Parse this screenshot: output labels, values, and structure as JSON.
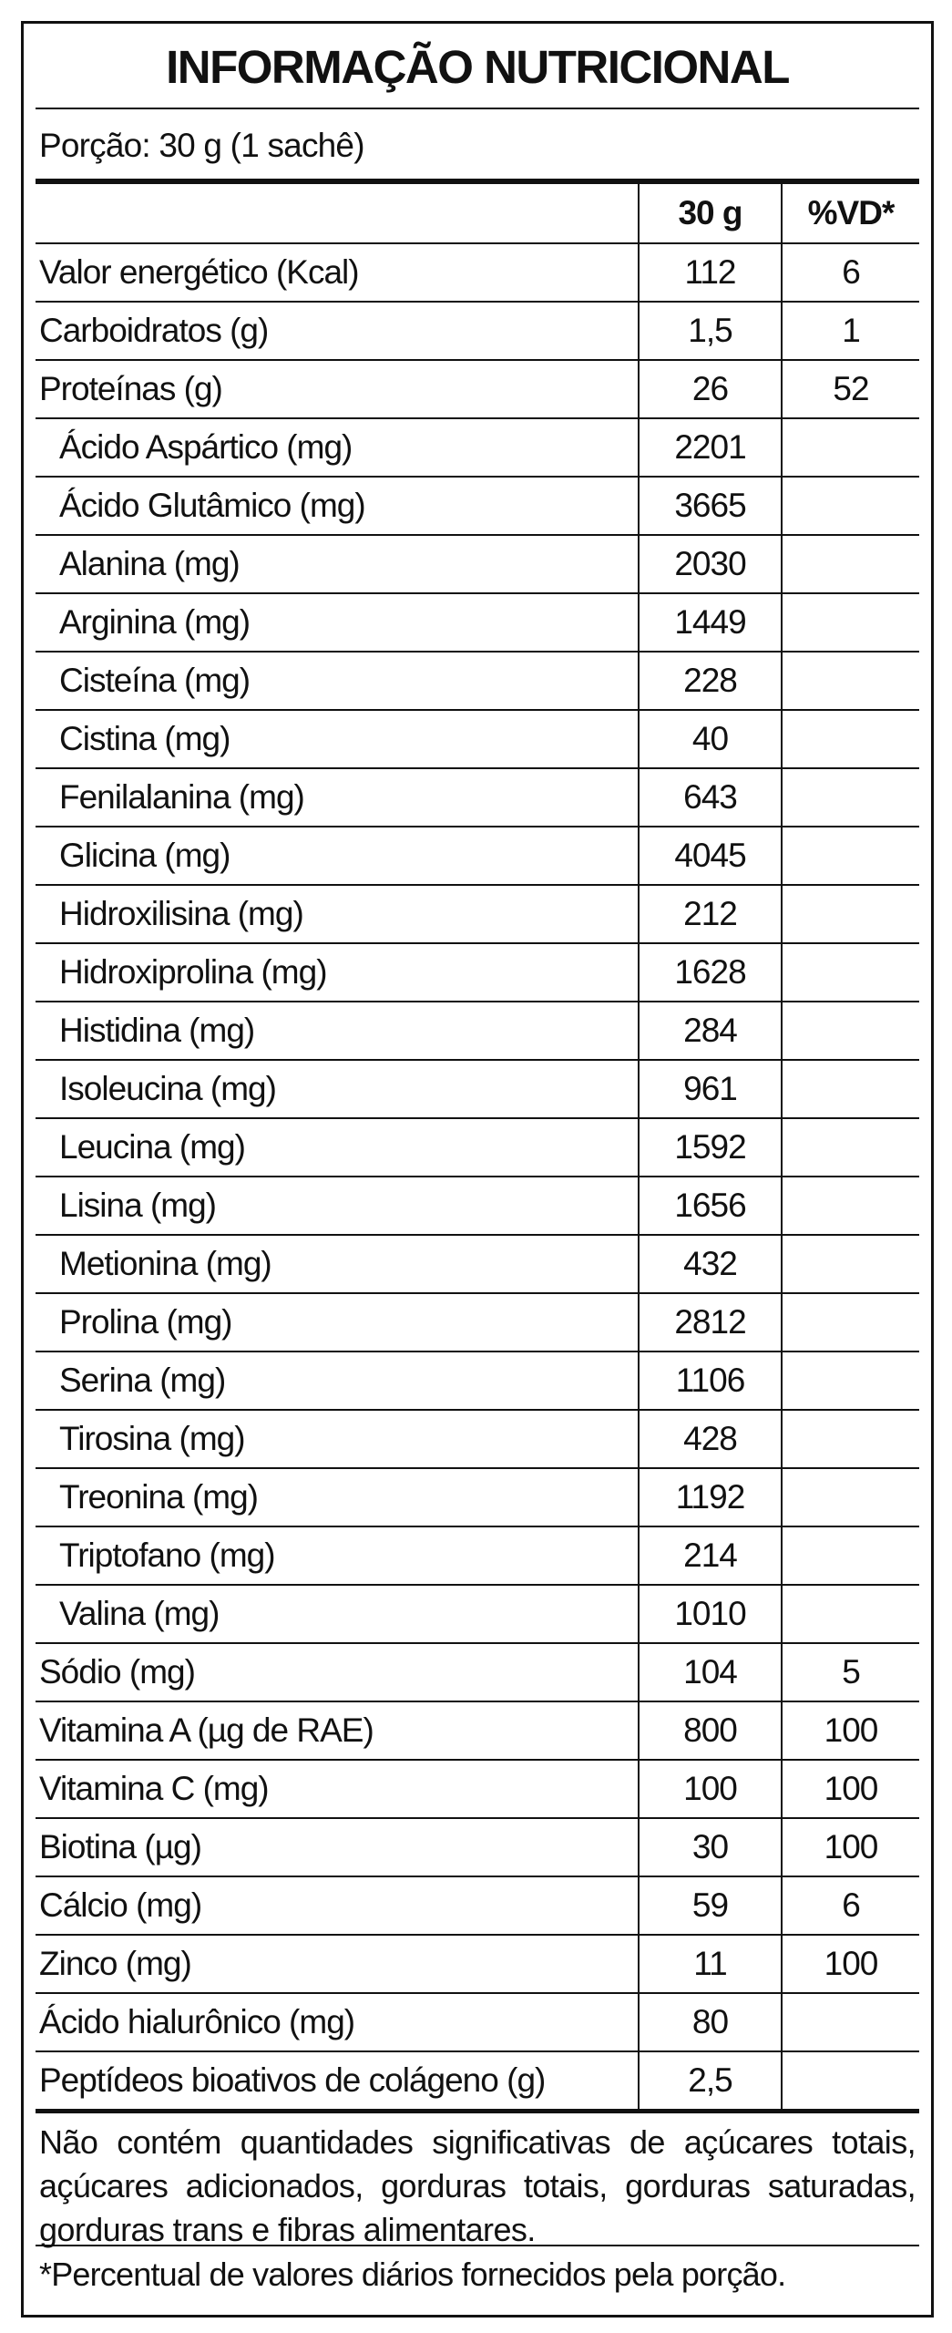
{
  "title": "INFORMAÇÃO NUTRICIONAL",
  "portion": "Porção: 30 g (1 sachê)",
  "table": {
    "header": [
      "30 g",
      "%VD*"
    ],
    "rows": [
      {
        "cells": [
          "Valor energético (Kcal)",
          "112",
          "6"
        ]
      },
      {
        "cells": [
          "Carboidratos (g)",
          "1,5",
          "1"
        ]
      },
      {
        "cells": [
          "Proteínas (g)",
          "26",
          "52"
        ],
        "components": [
          [
            "Ácido Aspártico (mg)",
            "2201"
          ],
          [
            "Ácido Glutâmico (mg)",
            "3665"
          ],
          [
            "Alanina (mg)",
            "2030"
          ],
          [
            "Arginina (mg)",
            "1449"
          ],
          [
            "Cisteína (mg)",
            "228"
          ],
          [
            "Cistina (mg)",
            "40"
          ],
          [
            "Fenilalanina (mg)",
            "643"
          ],
          [
            "Glicina (mg)",
            "4045"
          ],
          [
            "Hidroxilisina (mg)",
            "212"
          ],
          [
            "Hidroxiprolina (mg)",
            "1628"
          ],
          [
            "Histidina (mg)",
            "284"
          ],
          [
            "Isoleucina (mg)",
            "961"
          ],
          [
            "Leucina (mg)",
            "1592"
          ],
          [
            "Lisina (mg)",
            "1656"
          ],
          [
            "Metionina (mg)",
            "432"
          ],
          [
            "Prolina (mg)",
            "2812"
          ],
          [
            "Serina (mg)",
            "1106"
          ],
          [
            "Tirosina (mg)",
            "428"
          ],
          [
            "Treonina (mg)",
            "1192"
          ],
          [
            "Triptofano (mg)",
            "214"
          ],
          [
            "Valina (mg)",
            "1010"
          ]
        ]
      },
      {
        "cells": [
          "Sódio (mg)",
          "104",
          "5"
        ]
      },
      {
        "cells": [
          "Vitamina A (µg de RAE)",
          "800",
          "100"
        ]
      },
      {
        "cells": [
          "Vitamina C (mg)",
          "100",
          "100"
        ]
      },
      {
        "cells": [
          "Biotina (µg)",
          "30",
          "100"
        ]
      },
      {
        "cells": [
          "Cálcio (mg)",
          "59",
          "6"
        ]
      },
      {
        "cells": [
          "Zinco (mg)",
          "11",
          "100"
        ]
      },
      {
        "cells": [
          "Ácido hialurônico (mg)",
          "80"
        ]
      },
      {
        "cells": [
          "Peptídeos bioativos de colágeno (g)",
          "2,5"
        ]
      }
    ]
  },
  "note": "Não contém quantidades significativas de açúcares totais, açúcares adicionados, gorduras totais, gorduras saturadas, gorduras trans e fibras alimentares.",
  "footnote": "*Percentual de valores diários fornecidos pela porção."
}
